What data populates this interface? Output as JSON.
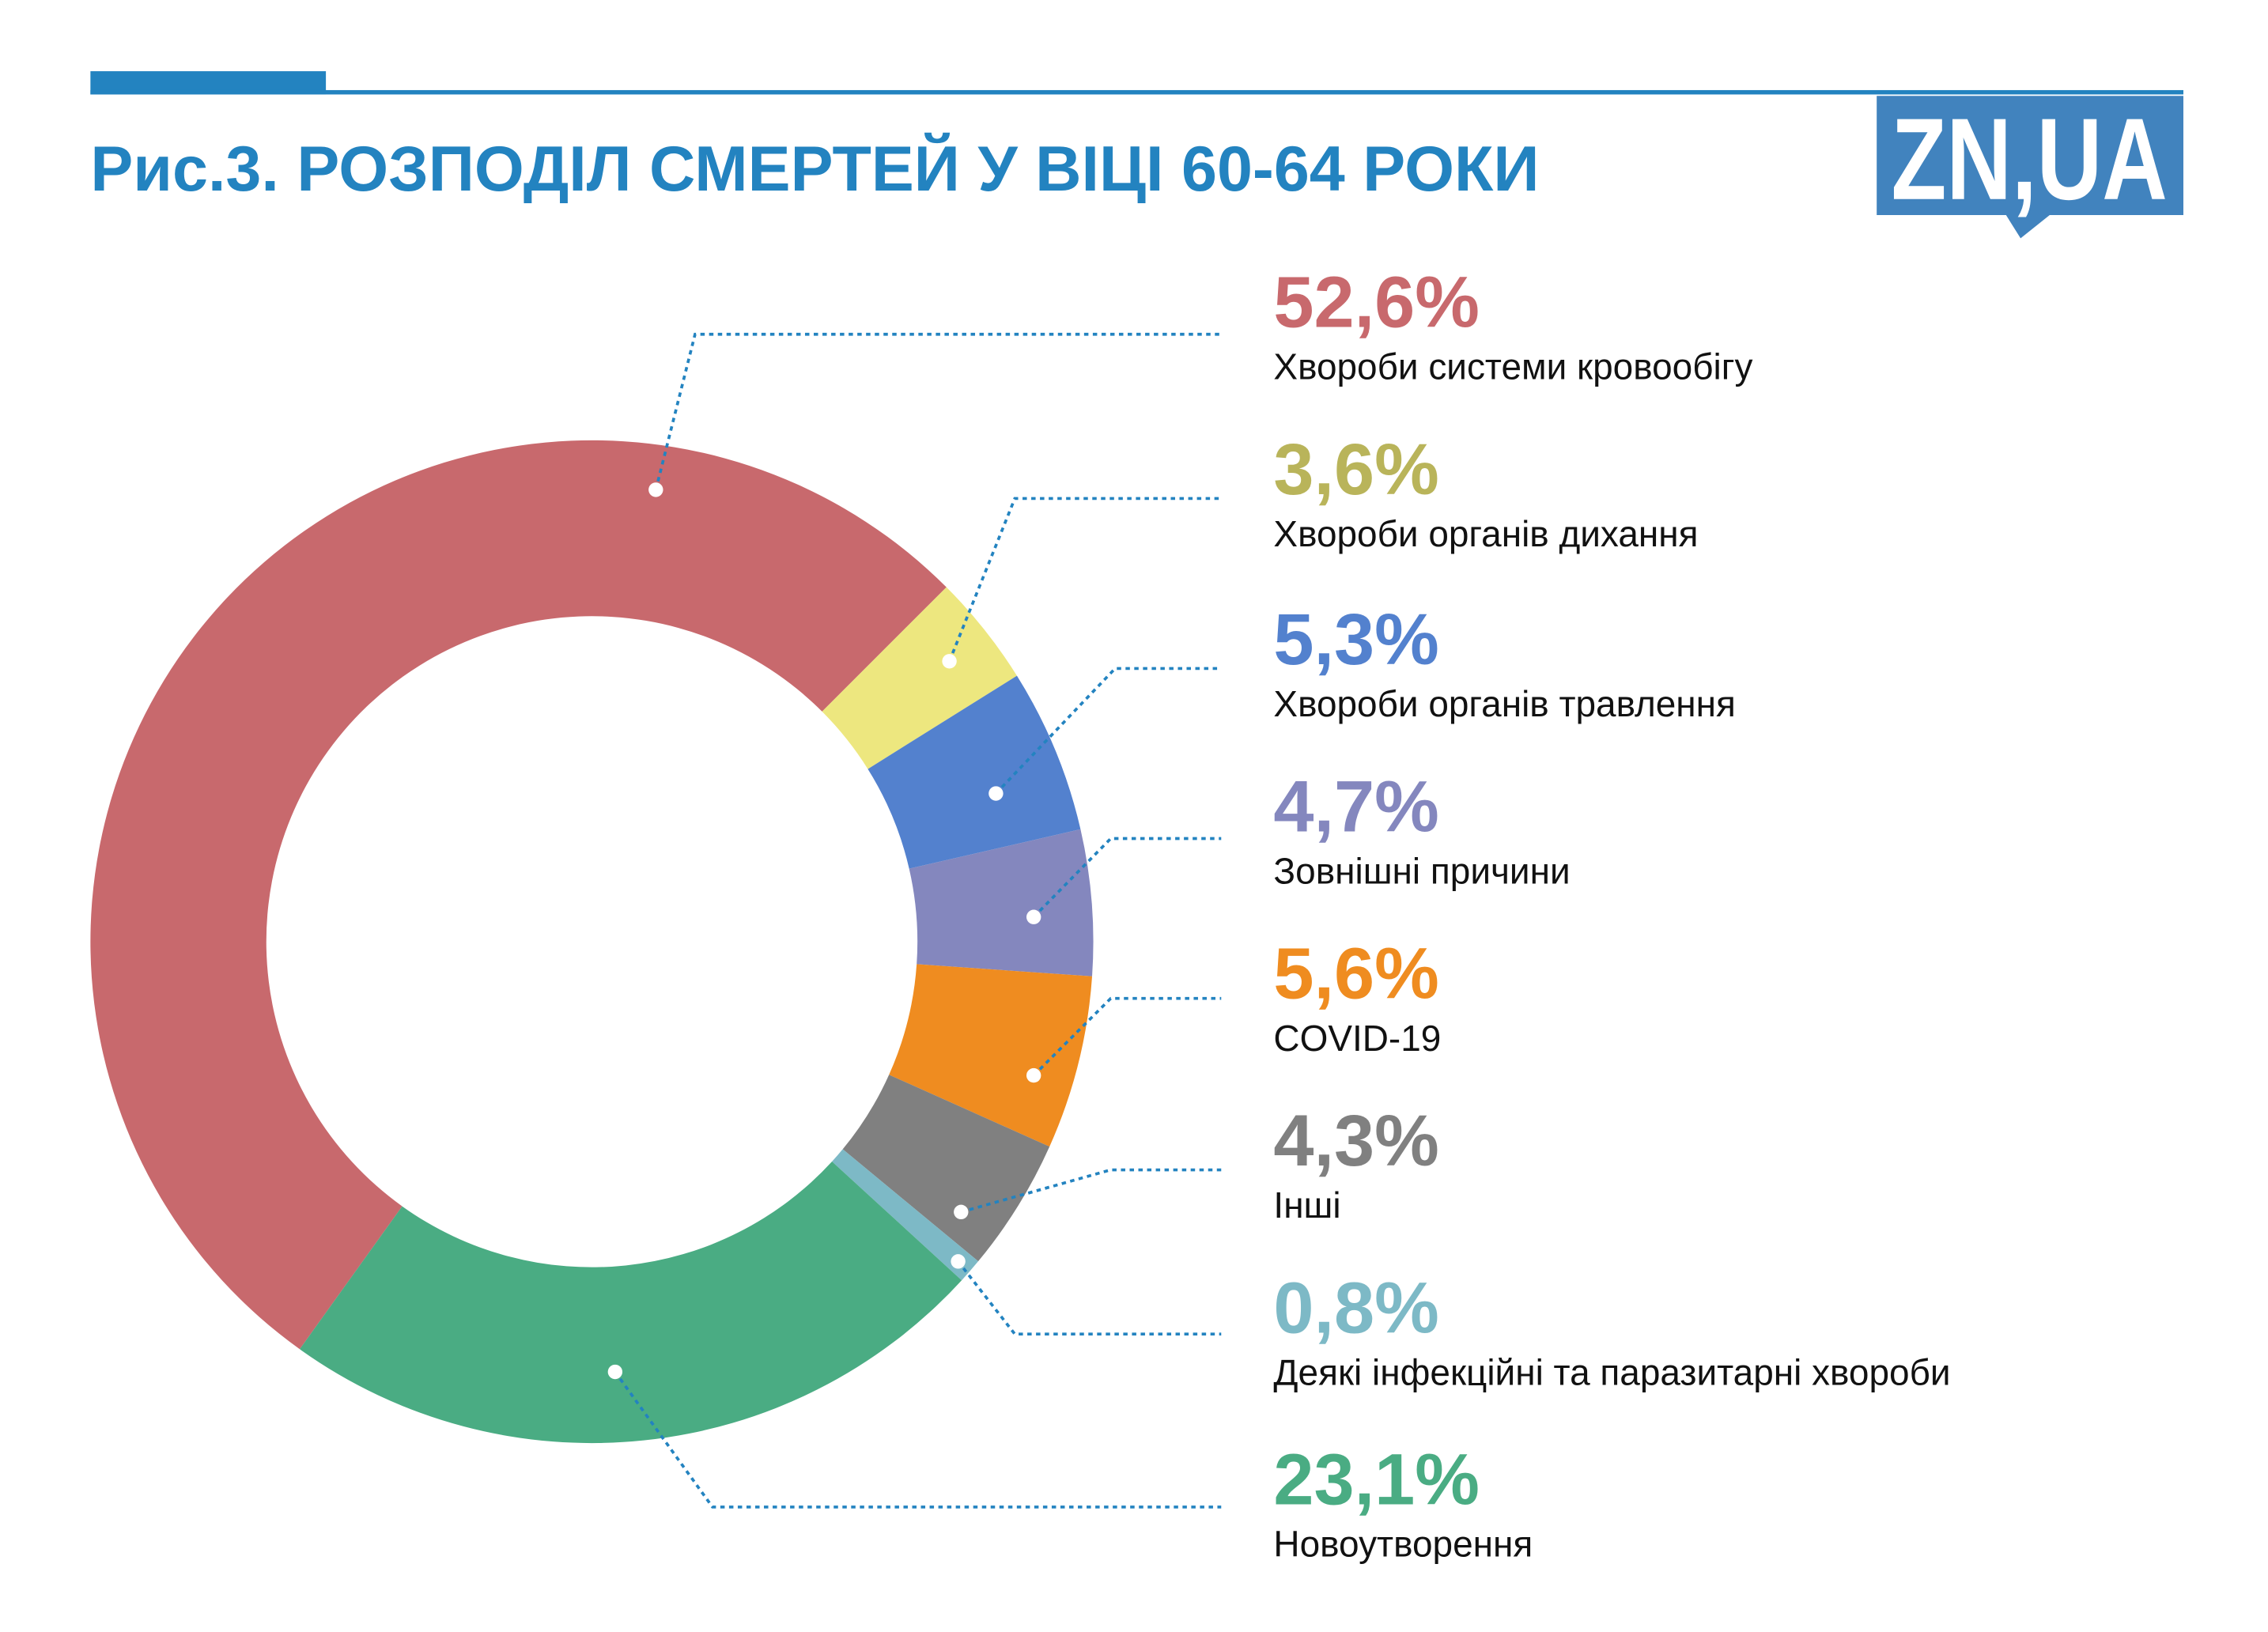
{
  "header": {
    "title": "Рис.3. РОЗПОДІЛ СМЕРТЕЙ У ВІЦІ 60-64 РОКИ",
    "logo_text": "ZN,UA",
    "accent_color": "#2383C0",
    "logo_color": "#4183BE"
  },
  "chart_data": {
    "type": "pie",
    "variant": "donut",
    "title": "Рис.3. РОЗПОДІЛ СМЕРТЕЙ У ВІЦІ 60-64 РОКИ",
    "unit": "%",
    "slices": [
      {
        "label": "Хвороби системи кровообігу",
        "value": 52.6,
        "value_label": "52,6%",
        "color": "#C8696D",
        "text_color": "#C8696D"
      },
      {
        "label": "Хвороби органів дихання",
        "value": 3.6,
        "value_label": "3,6%",
        "color": "#EDE77F",
        "text_color": "#B9B45A"
      },
      {
        "label": "Хвороби органів травлення",
        "value": 5.3,
        "value_label": "5,3%",
        "color": "#5381CE",
        "text_color": "#5381CE"
      },
      {
        "label": "Зовнішні причини",
        "value": 4.7,
        "value_label": "4,7%",
        "color": "#8487BE",
        "text_color": "#8487BE"
      },
      {
        "label": "COVID-19",
        "value": 5.6,
        "value_label": "5,6%",
        "color": "#EF8C20",
        "text_color": "#EF8C20"
      },
      {
        "label": "Інші",
        "value": 4.3,
        "value_label": "4,3%",
        "color": "#808080",
        "text_color": "#808080"
      },
      {
        "label": "Деякі інфекційні та паразитарні хвороби",
        "value": 0.8,
        "value_label": "0,8%",
        "color": "#7DB9C6",
        "text_color": "#7DB9C6"
      },
      {
        "label": "Новоутворення",
        "value": 23.1,
        "value_label": "23,1%",
        "color": "#4AAC83",
        "text_color": "#4AAC83"
      }
    ],
    "legend_placement": "right"
  }
}
